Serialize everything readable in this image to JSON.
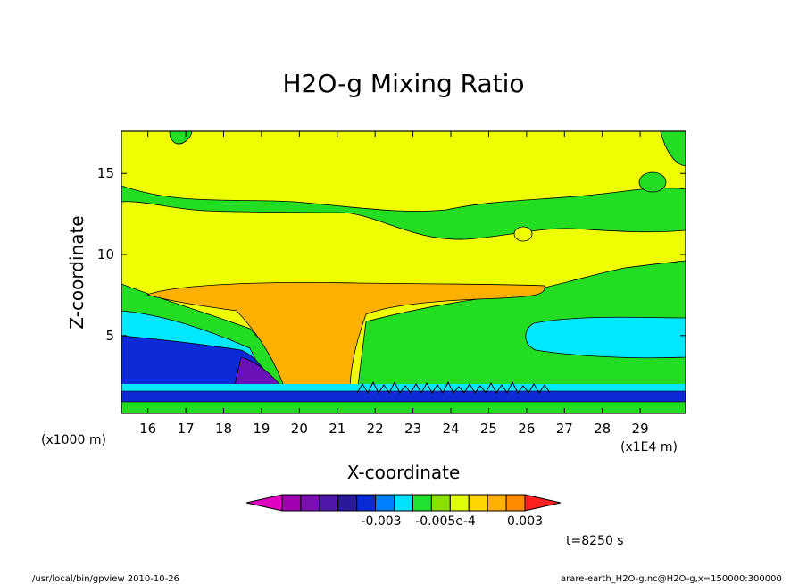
{
  "chart_data": {
    "type": "heatmap",
    "title": "H2O-g Mixing Ratio",
    "xlabel": "X-coordinate",
    "ylabel": "Z-coordinate",
    "x_unit": "(x1000 m)",
    "x_scale_note": "(x1E4 m)",
    "xlim": [
      15.3,
      30.2
    ],
    "ylim": [
      0.2,
      17.6
    ],
    "x_ticks": [
      16,
      17,
      18,
      19,
      20,
      21,
      22,
      23,
      24,
      25,
      26,
      27,
      28,
      29
    ],
    "y_ticks": [
      5,
      10,
      15
    ],
    "colorbar": {
      "labels": [
        "-0.003",
        "-0.005e-4",
        "0.003"
      ],
      "colors": [
        "#e000c0",
        "#a000b0",
        "#7a10b0",
        "#5018a8",
        "#2a1a9a",
        "#0a2ad8",
        "#0080ff",
        "#00e0ff",
        "#20e030",
        "#8ce000",
        "#e0ff00",
        "#ffd400",
        "#ffb000",
        "#ff8a00",
        "#ff2020"
      ]
    },
    "colors": {
      "background": "#ffffff",
      "plot_fill": "#eeff00",
      "band_green": "#22dd22",
      "band_cyan": "#00e8ff",
      "band_blue": "#0d2ad6",
      "band_purple": "#6a10b8",
      "plume_orange": "#ffb000"
    }
  },
  "time_label": "t=8250 s",
  "footer_left": "/usr/local/bin/gpview  2010-10-26",
  "footer_right": "arare-earth_H2O-g.nc@H2O-g,x=150000:300000"
}
